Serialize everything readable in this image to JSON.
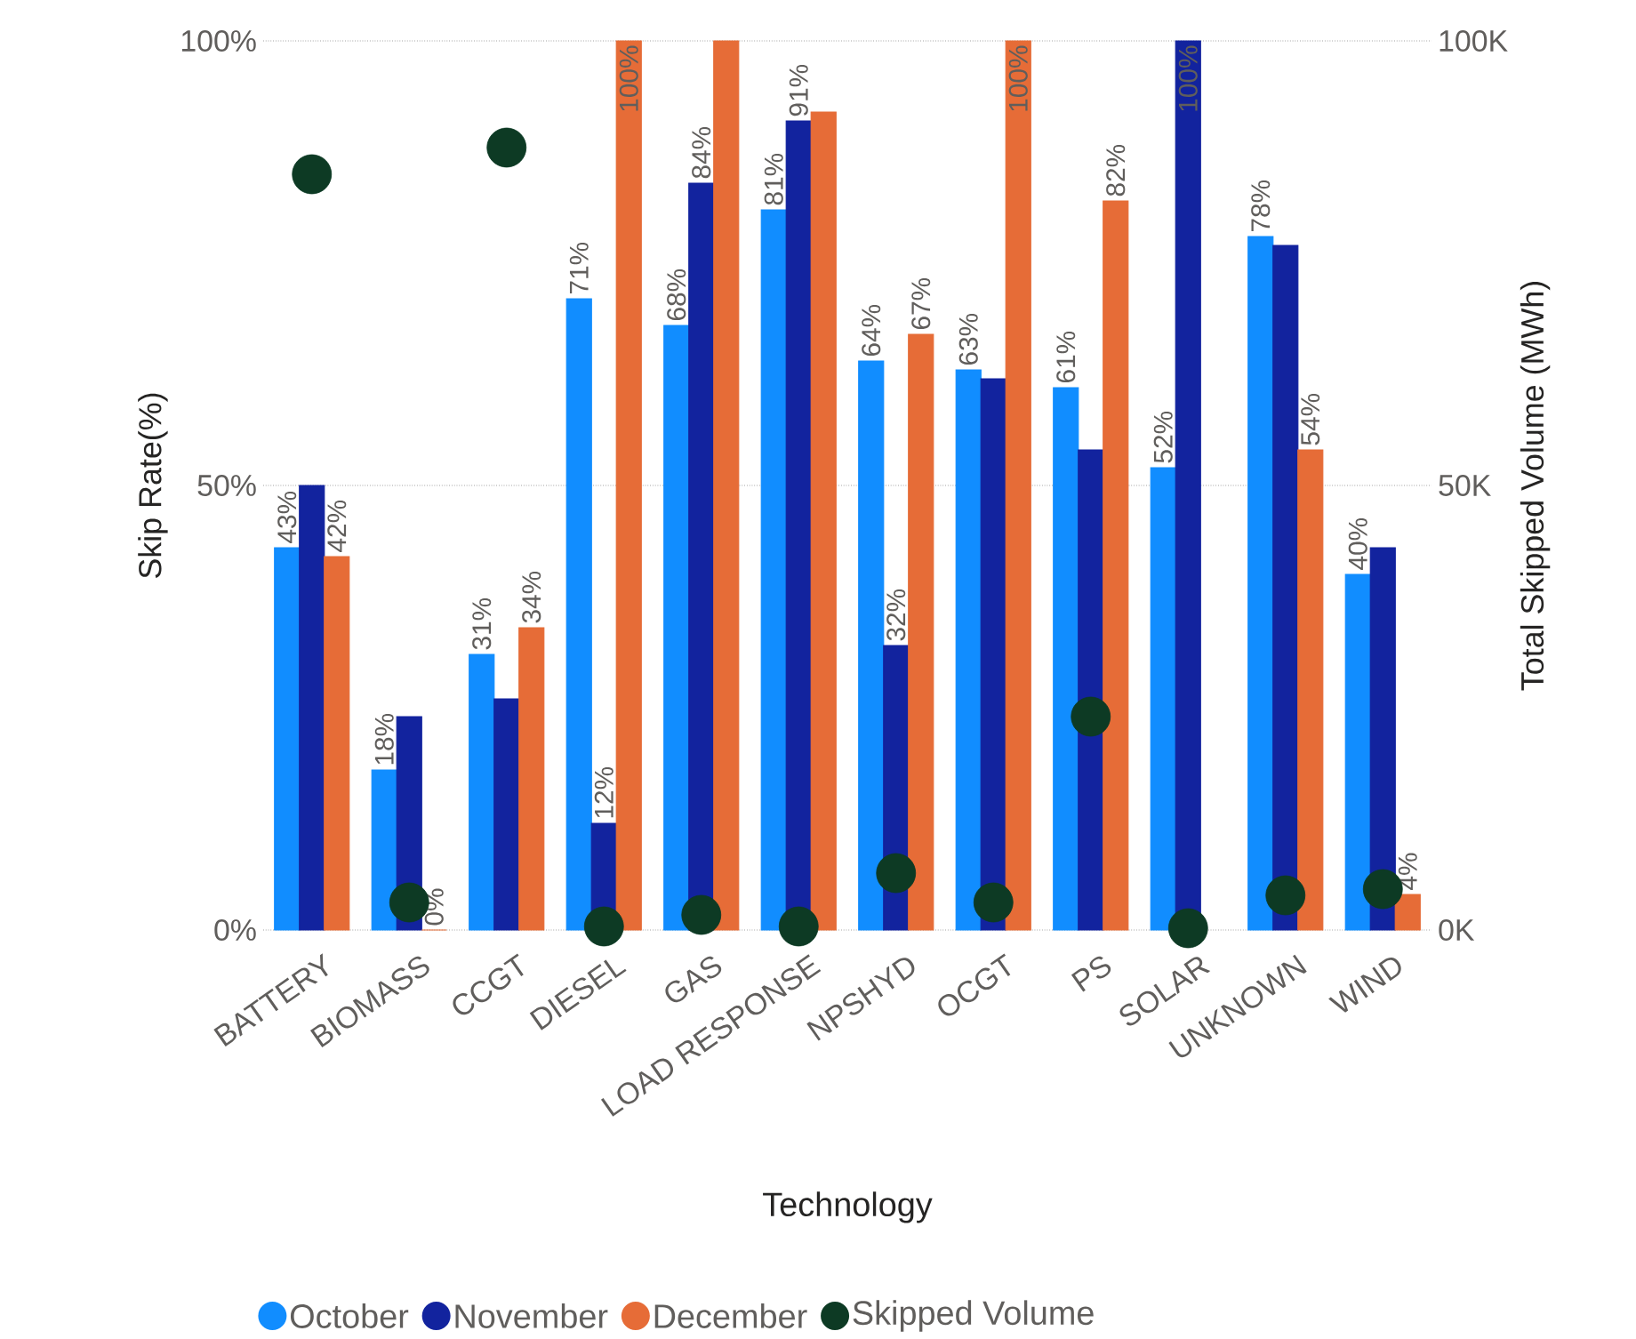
{
  "chart_data": {
    "type": "bar",
    "xlabel": "Technology",
    "ylabel": "Skip Rate(%)",
    "y2label": "Total Skipped Volume (MWh)",
    "categories": [
      "BATTERY",
      "BIOMASS",
      "CCGT",
      "DIESEL",
      "GAS",
      "LOAD RESPONSE",
      "NPSHYD",
      "OCGT",
      "PS",
      "SOLAR",
      "UNKNOWN",
      "WIND"
    ],
    "series": [
      {
        "name": "October",
        "color": "#118dff",
        "values": [
          43,
          18,
          31,
          71,
          68,
          81,
          64,
          63,
          61,
          52,
          78,
          40
        ],
        "value_labels": [
          "43%",
          "18%",
          "31%",
          "71%",
          "68%",
          "81%",
          "64%",
          "63%",
          "61%",
          "52%",
          "78%",
          "40%"
        ]
      },
      {
        "name": "November",
        "color": "#12239e",
        "values": [
          50,
          24,
          26,
          12,
          84,
          91,
          32,
          62,
          54,
          100,
          77,
          43
        ],
        "value_labels": [
          null,
          null,
          null,
          "12%",
          "84%",
          "91%",
          "32%",
          null,
          null,
          "100%",
          null,
          null
        ]
      },
      {
        "name": "December",
        "color": "#e66c37",
        "values": [
          42,
          0,
          34,
          100,
          100,
          92,
          67,
          100,
          82,
          null,
          54,
          4
        ],
        "value_labels": [
          "42%",
          "0%",
          "34%",
          "100%",
          null,
          null,
          "67%",
          "100%",
          "82%",
          null,
          "54%",
          "4%"
        ]
      },
      {
        "name": "Skipped Volume",
        "color": "#0d3a24",
        "type": "scatter",
        "axis": "y2",
        "marker": "circle",
        "values": [
          85000,
          3100,
          88000,
          400,
          1700,
          400,
          6400,
          3100,
          24000,
          200,
          3900,
          4600
        ]
      }
    ],
    "ylim": [
      0,
      100
    ],
    "yticks": [
      {
        "value": 0,
        "label": "0%"
      },
      {
        "value": 50,
        "label": "50%"
      },
      {
        "value": 100,
        "label": "100%"
      }
    ],
    "y2lim": [
      0,
      100000
    ],
    "y2ticks": [
      {
        "value": 0,
        "label": "0K"
      },
      {
        "value": 50000,
        "label": "50K"
      },
      {
        "value": 100000,
        "label": "100K"
      }
    ],
    "grid": "y",
    "legend": "bottom"
  }
}
